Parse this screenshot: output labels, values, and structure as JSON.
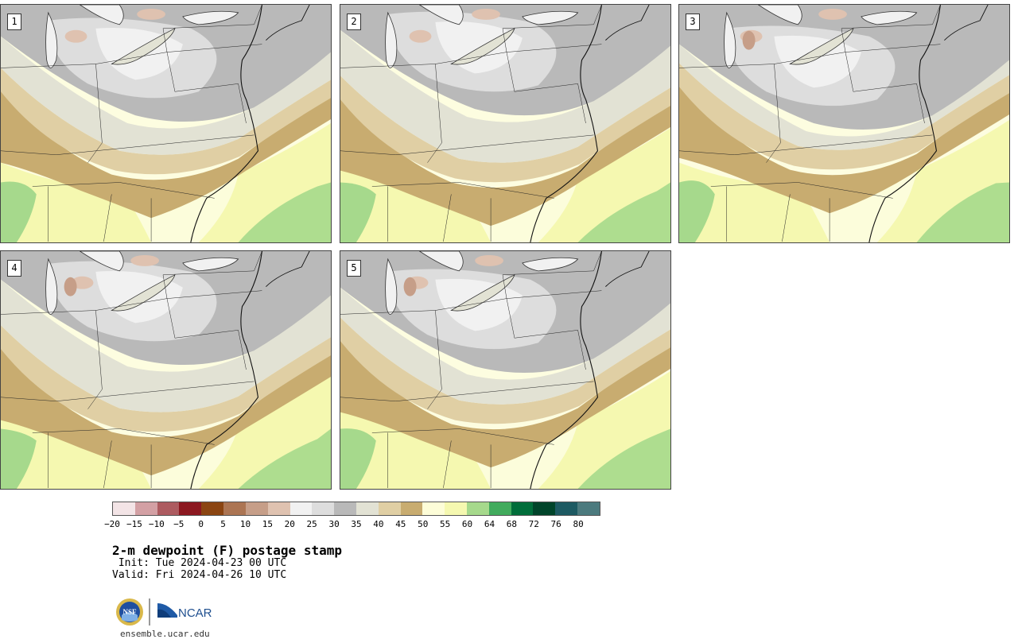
{
  "panels": [
    {
      "label": "1"
    },
    {
      "label": "2"
    },
    {
      "label": "3"
    },
    {
      "label": "4"
    },
    {
      "label": "5"
    }
  ],
  "colorbar": {
    "colors": [
      "#f3e4e6",
      "#d3a0a4",
      "#ad5b60",
      "#8c1820",
      "#8b4512",
      "#ac7553",
      "#c69e88",
      "#dfc2b0",
      "#f1f1f1",
      "#dddddd",
      "#b9b9b9",
      "#e2e2d4",
      "#e0cfa4",
      "#c8ac70",
      "#fdfdd8",
      "#f5f8b0",
      "#a6d98c",
      "#41ab5d",
      "#006d3a",
      "#00442a",
      "#1d5a62",
      "#4c7a7e"
    ],
    "ticks": [
      "−20",
      "−15",
      "−10",
      "−5",
      "0",
      "5",
      "10",
      "15",
      "20",
      "25",
      "30",
      "35",
      "40",
      "45",
      "50",
      "55",
      "60",
      "64",
      "68",
      "72",
      "76",
      "80"
    ]
  },
  "title": "2-m dewpoint (F) postage stamp",
  "init_text": " Init: Tue 2024-04-23 00 UTC",
  "valid_text": "Valid: Fri 2024-04-26 10 UTC",
  "logos": {
    "nsf": "NSF",
    "ncar": "NCAR"
  },
  "footer_url": "ensemble.ucar.edu"
}
